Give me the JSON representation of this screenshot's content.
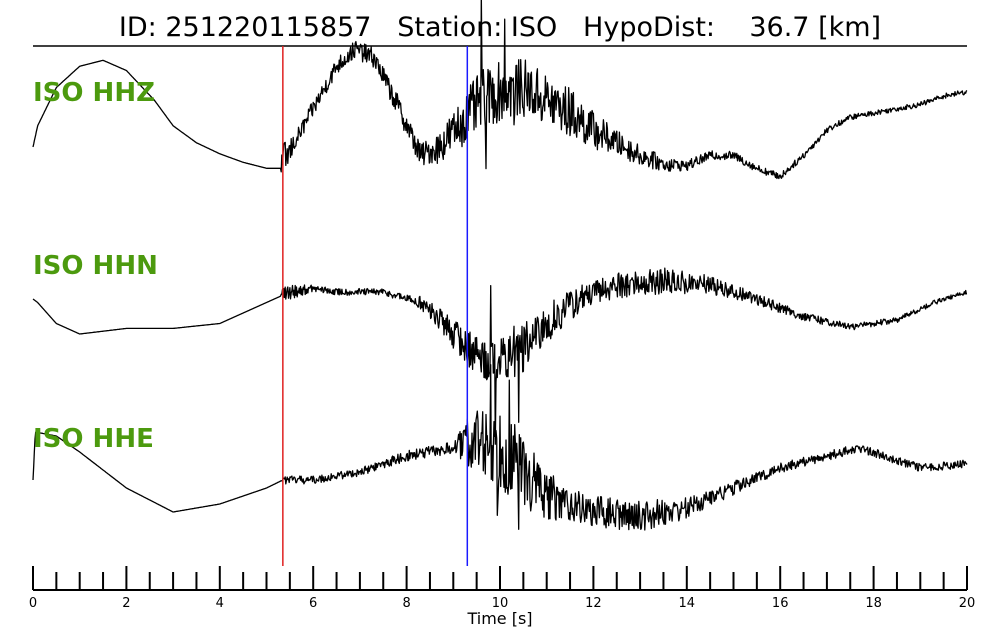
{
  "title": {
    "id_label": "ID:",
    "id_value": "251220115857",
    "station_label": "Station:",
    "station_value": "ISO",
    "hypodist_label": "HypoDist:",
    "hypodist_value": "36.7",
    "hypodist_unit": "[km]"
  },
  "chart_data": {
    "type": "line",
    "xlabel": "Time [s]",
    "xlim": [
      0,
      20
    ],
    "xticks": [
      0,
      2,
      4,
      6,
      8,
      10,
      12,
      14,
      16,
      18,
      20
    ],
    "minor_tick_step": 0.5,
    "p_pick_time": 5.35,
    "s_pick_time": 9.3,
    "colors": {
      "p_pick": "#e02020",
      "s_pick": "#1a1aff",
      "label": "#4c9a0e",
      "trace": "#000000"
    },
    "series": [
      {
        "name": "ISO HHZ",
        "keypoints": [
          [
            0,
            -0.2
          ],
          [
            0.1,
            0.05
          ],
          [
            0.5,
            0.5
          ],
          [
            1,
            0.75
          ],
          [
            1.5,
            0.82
          ],
          [
            2,
            0.7
          ],
          [
            2.6,
            0.35
          ],
          [
            3,
            0.05
          ],
          [
            3.5,
            -0.15
          ],
          [
            4,
            -0.28
          ],
          [
            4.5,
            -0.38
          ],
          [
            5,
            -0.45
          ],
          [
            5.3,
            -0.45
          ],
          [
            5.5,
            -0.25
          ],
          [
            6,
            0.25
          ],
          [
            6.5,
            0.75
          ],
          [
            6.9,
            0.95
          ],
          [
            7.3,
            0.85
          ],
          [
            7.8,
            0.3
          ],
          [
            8.3,
            -0.3
          ],
          [
            8.7,
            -0.2
          ],
          [
            9.2,
            0.1
          ],
          [
            9.6,
            0.35
          ],
          [
            10,
            0.45
          ],
          [
            10.5,
            0.5
          ],
          [
            11,
            0.35
          ],
          [
            11.5,
            0.2
          ],
          [
            12,
            0.0
          ],
          [
            12.5,
            -0.15
          ],
          [
            13,
            -0.3
          ],
          [
            13.5,
            -0.4
          ],
          [
            14,
            -0.42
          ],
          [
            14.5,
            -0.3
          ],
          [
            15,
            -0.3
          ],
          [
            15.5,
            -0.45
          ],
          [
            16,
            -0.55
          ],
          [
            16.5,
            -0.3
          ],
          [
            17,
            0.0
          ],
          [
            17.5,
            0.15
          ],
          [
            18,
            0.2
          ],
          [
            18.5,
            0.25
          ],
          [
            19,
            0.3
          ],
          [
            19.5,
            0.4
          ],
          [
            20,
            0.45
          ]
        ],
        "noise": [
          [
            0,
            0
          ],
          [
            5.3,
            0
          ],
          [
            5.35,
            0.25
          ],
          [
            5.6,
            0.1
          ],
          [
            6.5,
            0.1
          ],
          [
            7.5,
            0.12
          ],
          [
            8.5,
            0.15
          ],
          [
            9.5,
            0.35
          ],
          [
            10.2,
            0.35
          ],
          [
            11.5,
            0.3
          ],
          [
            12.5,
            0.15
          ],
          [
            14,
            0.06
          ],
          [
            16,
            0.04
          ],
          [
            18,
            0.03
          ],
          [
            20,
            0.03
          ]
        ],
        "spikes": [
          [
            9.6,
            1.15
          ],
          [
            9.7,
            -0.8
          ],
          [
            10.1,
            0.9
          ],
          [
            10.3,
            -0.6
          ]
        ]
      },
      {
        "name": "ISO HHN",
        "keypoints": [
          [
            0,
            0.3
          ],
          [
            0.1,
            0.25
          ],
          [
            0.5,
            -0.05
          ],
          [
            1,
            -0.2
          ],
          [
            2,
            -0.12
          ],
          [
            3,
            -0.12
          ],
          [
            4,
            -0.05
          ],
          [
            5,
            0.25
          ],
          [
            5.5,
            0.4
          ],
          [
            6,
            0.45
          ],
          [
            6.5,
            0.4
          ],
          [
            7.5,
            0.4
          ],
          [
            8.3,
            0.25
          ],
          [
            8.8,
            -0.05
          ],
          [
            9.3,
            -0.4
          ],
          [
            9.8,
            -0.6
          ],
          [
            10.2,
            -0.55
          ],
          [
            10.7,
            -0.3
          ],
          [
            11.2,
            0.05
          ],
          [
            11.7,
            0.3
          ],
          [
            12.5,
            0.5
          ],
          [
            13.5,
            0.55
          ],
          [
            14.5,
            0.5
          ],
          [
            15.5,
            0.3
          ],
          [
            16.5,
            0.05
          ],
          [
            17.5,
            -0.1
          ],
          [
            18.5,
            0.0
          ],
          [
            19.3,
            0.25
          ],
          [
            20,
            0.4
          ]
        ],
        "noise": [
          [
            0,
            0
          ],
          [
            5.3,
            0
          ],
          [
            5.35,
            0.12
          ],
          [
            6,
            0.05
          ],
          [
            8,
            0.05
          ],
          [
            9.5,
            0.3
          ],
          [
            10.5,
            0.35
          ],
          [
            12,
            0.18
          ],
          [
            13.5,
            0.2
          ],
          [
            15,
            0.1
          ],
          [
            17,
            0.05
          ],
          [
            20,
            0.03
          ]
        ],
        "spikes": [
          [
            9.8,
            1.0
          ],
          [
            9.9,
            -0.9
          ],
          [
            10.3,
            0.7
          ],
          [
            10.4,
            -0.7
          ]
        ]
      },
      {
        "name": "ISO HHE",
        "keypoints": [
          [
            0,
            0.0
          ],
          [
            0.05,
            0.6
          ],
          [
            0.5,
            0.55
          ],
          [
            1,
            0.35
          ],
          [
            2,
            -0.1
          ],
          [
            3,
            -0.4
          ],
          [
            4,
            -0.3
          ],
          [
            5,
            -0.1
          ],
          [
            5.35,
            0.0
          ],
          [
            6,
            0.0
          ],
          [
            7,
            0.1
          ],
          [
            8,
            0.3
          ],
          [
            9,
            0.4
          ],
          [
            9.5,
            0.5
          ],
          [
            10,
            0.4
          ],
          [
            10.5,
            0.1
          ],
          [
            11,
            -0.2
          ],
          [
            12,
            -0.4
          ],
          [
            13,
            -0.45
          ],
          [
            14,
            -0.35
          ],
          [
            15,
            -0.1
          ],
          [
            16,
            0.15
          ],
          [
            17,
            0.3
          ],
          [
            17.7,
            0.4
          ],
          [
            18.5,
            0.25
          ],
          [
            19,
            0.15
          ],
          [
            20,
            0.2
          ]
        ],
        "noise": [
          [
            0,
            0
          ],
          [
            5.3,
            0
          ],
          [
            5.4,
            0.05
          ],
          [
            7,
            0.05
          ],
          [
            9,
            0.08
          ],
          [
            9.5,
            0.45
          ],
          [
            10.3,
            0.5
          ],
          [
            11.5,
            0.2
          ],
          [
            13,
            0.2
          ],
          [
            14.5,
            0.1
          ],
          [
            16,
            0.06
          ],
          [
            20,
            0.05
          ]
        ],
        "spikes": [
          [
            9.8,
            1.0
          ],
          [
            9.95,
            -0.5
          ],
          [
            10.2,
            1.05
          ],
          [
            10.4,
            -0.4
          ]
        ]
      }
    ]
  }
}
